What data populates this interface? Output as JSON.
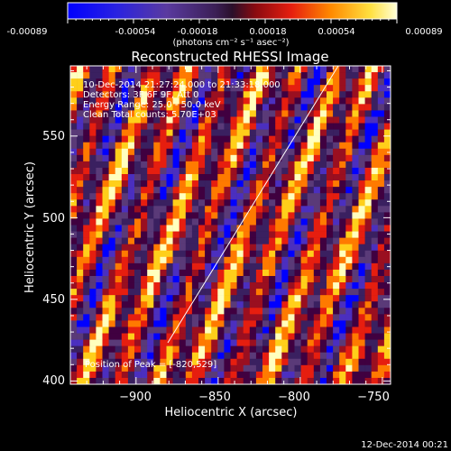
{
  "colorbar": {
    "ticks": [
      "-0.00089",
      "-0.00054",
      "-0.00018",
      "0.00018",
      "0.00054",
      "0.00089"
    ],
    "unit_label": "(photons cm⁻² s⁻¹ asec⁻²)"
  },
  "title": "Reconstructed RHESSI Image",
  "info": {
    "time": "10-Dec-2014 21:27:24.000 to 21:33:18.000",
    "detectors": "Detectors: 3F 6F 9F, Att 0",
    "energy": "Energy Range: 25.0 - 50.0 keV",
    "clean": "Clean     Total counts: 5.70E+03"
  },
  "peak_label": "Position of Peak = [-820,529]",
  "axes": {
    "xlabel": "Heliocentric X (arcsec)",
    "ylabel": "Heliocentric Y (arcsec)",
    "x_ticks": [
      "−900",
      "−850",
      "−800",
      "−750"
    ],
    "y_ticks": [
      "400",
      "450",
      "500",
      "550"
    ]
  },
  "timestamp": "12-Dec-2014 00:21",
  "colors": {
    "background": "#000000",
    "text": "#ffffff",
    "colormap": [
      "#0000ff",
      "#4b2fbf",
      "#5a3a78",
      "#3a2060",
      "#400040",
      "#9a0f20",
      "#e61e0f",
      "#ff7a00",
      "#ffcf1a",
      "#ffffbe"
    ]
  }
}
